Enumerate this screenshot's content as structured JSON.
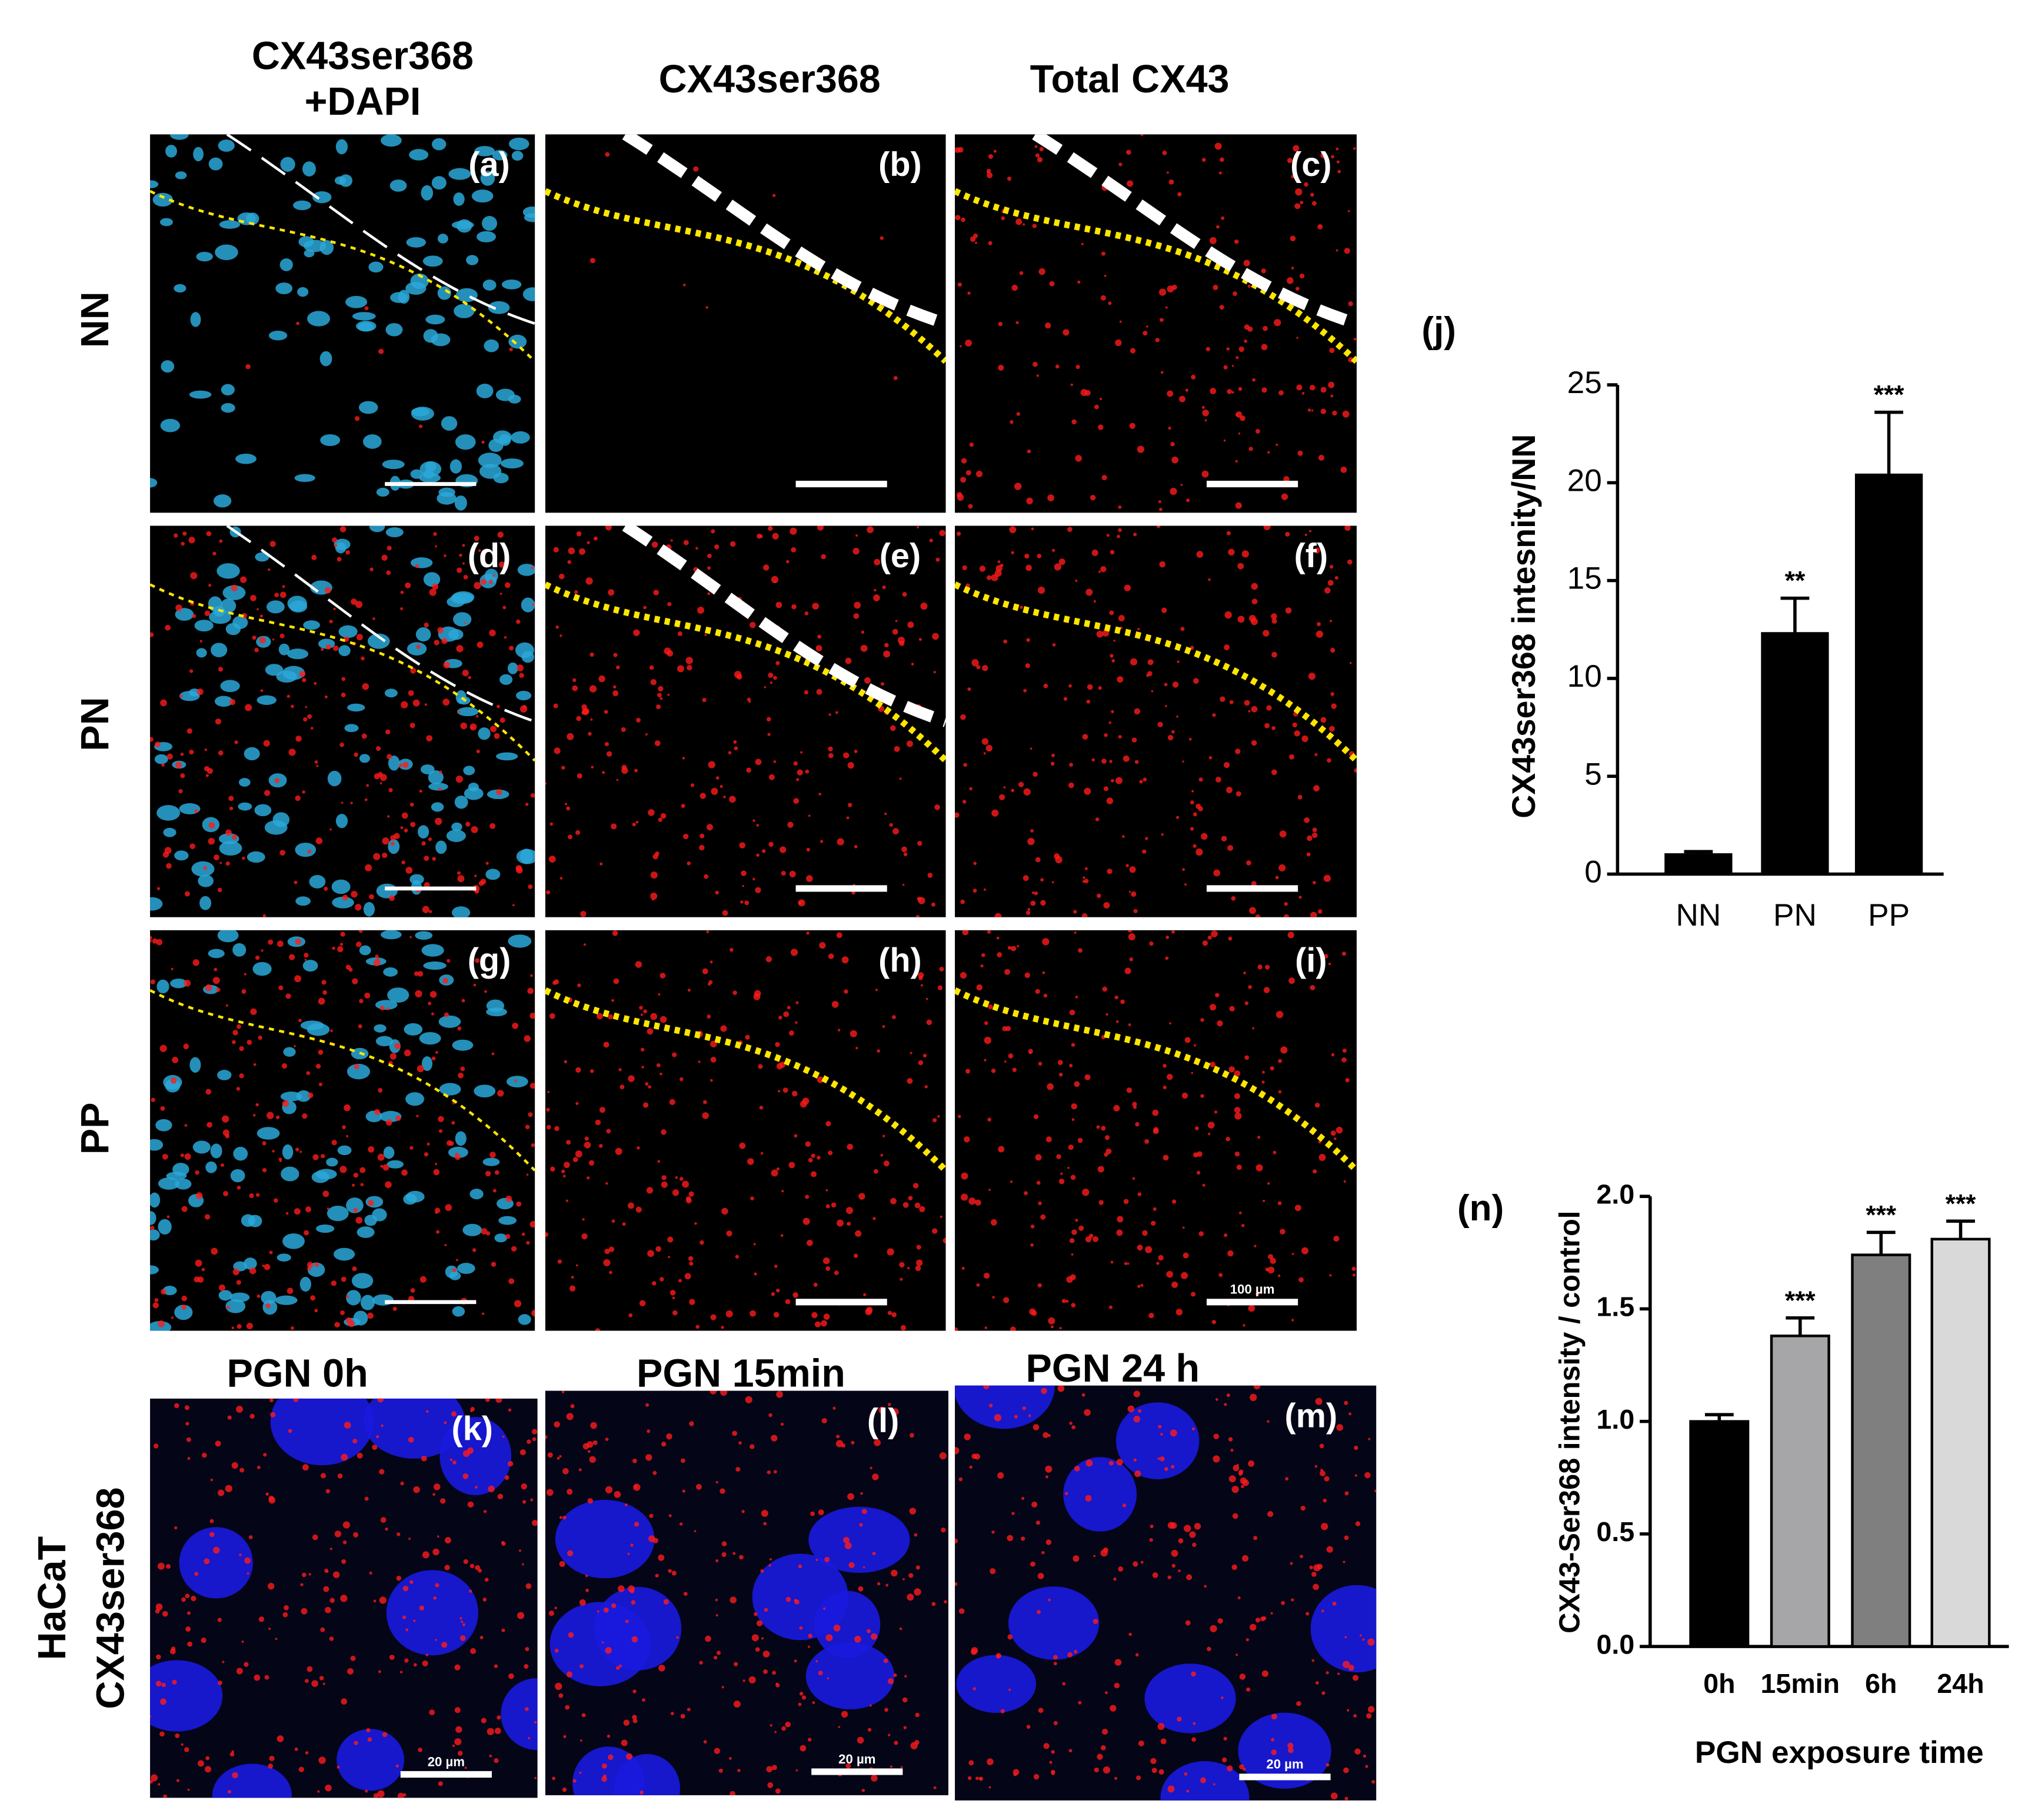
{
  "figure": {
    "column_headers": [
      [
        "CX43ser368",
        "+DAPI"
      ],
      [
        "CX43ser368"
      ],
      [
        "Total CX43"
      ]
    ],
    "row_labels": [
      "NN",
      "PN",
      "PP"
    ],
    "cell_line_label": [
      "HaCaT",
      "CX43ser368"
    ],
    "time_headers": [
      "PGN 0h",
      "PGN 15min",
      "PGN 24 h"
    ],
    "panels": [
      {
        "label": "(a)"
      },
      {
        "label": "(b)"
      },
      {
        "label": "(c)"
      },
      {
        "label": "(d)"
      },
      {
        "label": "(e)"
      },
      {
        "label": "(f)"
      },
      {
        "label": "(g)"
      },
      {
        "label": "(h)"
      },
      {
        "label": "(i)",
        "scale_label": "100 µm"
      },
      {
        "label": "(k)",
        "scale_label": "20 µm"
      },
      {
        "label": "(l)",
        "scale_label": "20 µm"
      },
      {
        "label": "(m)",
        "scale_label": "20 µm"
      }
    ]
  },
  "chart_data": [
    {
      "type": "bar",
      "panel_label": "(j)",
      "y_label": "CX43ser368 intesnity/NN",
      "categories": [
        "NN",
        "PN",
        "PP"
      ],
      "values": [
        1,
        12.3,
        20.4
      ],
      "errors": [
        0.15,
        1.8,
        3.2
      ],
      "significance": [
        null,
        "**",
        "***"
      ],
      "color": "#000000",
      "ylim": [
        0,
        25
      ],
      "yticks": [
        0,
        5,
        10,
        15,
        20,
        25
      ]
    },
    {
      "type": "bar",
      "panel_label": "(n)",
      "y_label": "CX43-Ser368 intensity / control",
      "x_label": "PGN exposure time",
      "categories": [
        "0h",
        "15min",
        "6h",
        "24h"
      ],
      "values": [
        1.0,
        1.38,
        1.74,
        1.81
      ],
      "errors": [
        0.03,
        0.08,
        0.1,
        0.08
      ],
      "significance": [
        null,
        "***",
        "***",
        "***"
      ],
      "colors": [
        "#000000",
        "#a6a6a8",
        "#7f7f7f",
        "#d9d9d9"
      ],
      "ylim": [
        0,
        2
      ],
      "yticks": [
        {
          "value": 0,
          "label": "0.0"
        },
        {
          "value": 0.5,
          "label": "0.5"
        },
        {
          "value": 1,
          "label": "1.0"
        },
        {
          "value": 1.5,
          "label": "1.5"
        },
        {
          "value": 2,
          "label": "2.0"
        }
      ]
    }
  ]
}
